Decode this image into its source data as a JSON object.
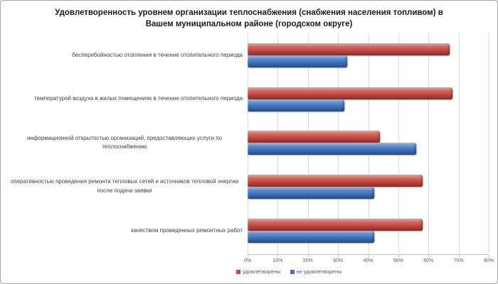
{
  "title": "Удовлетворенность уровнем организации теплоснабжения (снабжения населения топливом) в Вашем муниципальном районе (городском округе)",
  "chart_data": {
    "type": "bar",
    "orientation": "horizontal",
    "title": "Удовлетворенность уровнем организации теплоснабжения (снабжения населения топливом) в Вашем муниципальном районе (городском округе)",
    "categories": [
      "бесперебойностью  отопления в течение отопительного периода",
      "температурой  воздуха в жилых помещениях в течение отопительного периода",
      "информационной открытостью  организаций, предоставляющих услуги по теплоснабжению",
      "оперативностью проведения ремонта тепловых сетей и источников тепловой энергии после подачи заявки",
      "качеством проведенных ремонтных работ"
    ],
    "series": [
      {
        "name": "удовлетворены",
        "color": "#cb4a43",
        "values": [
          67,
          68,
          44,
          58,
          58
        ]
      },
      {
        "name": "не удовлетворены",
        "color": "#3e76c5",
        "values": [
          33,
          32,
          56,
          42,
          42
        ]
      }
    ],
    "xlim": [
      0,
      80
    ],
    "x_ticks": [
      "0%",
      "10%",
      "20%",
      "30%",
      "40%",
      "50%",
      "60%",
      "70%",
      "80%"
    ],
    "grid": true,
    "legend_position": "bottom",
    "colors": {
      "grid_line": "#d9d9d9",
      "axis_line": "#bfbfbf",
      "label_text": "#3f3f3f",
      "tick_text": "#595959"
    }
  }
}
